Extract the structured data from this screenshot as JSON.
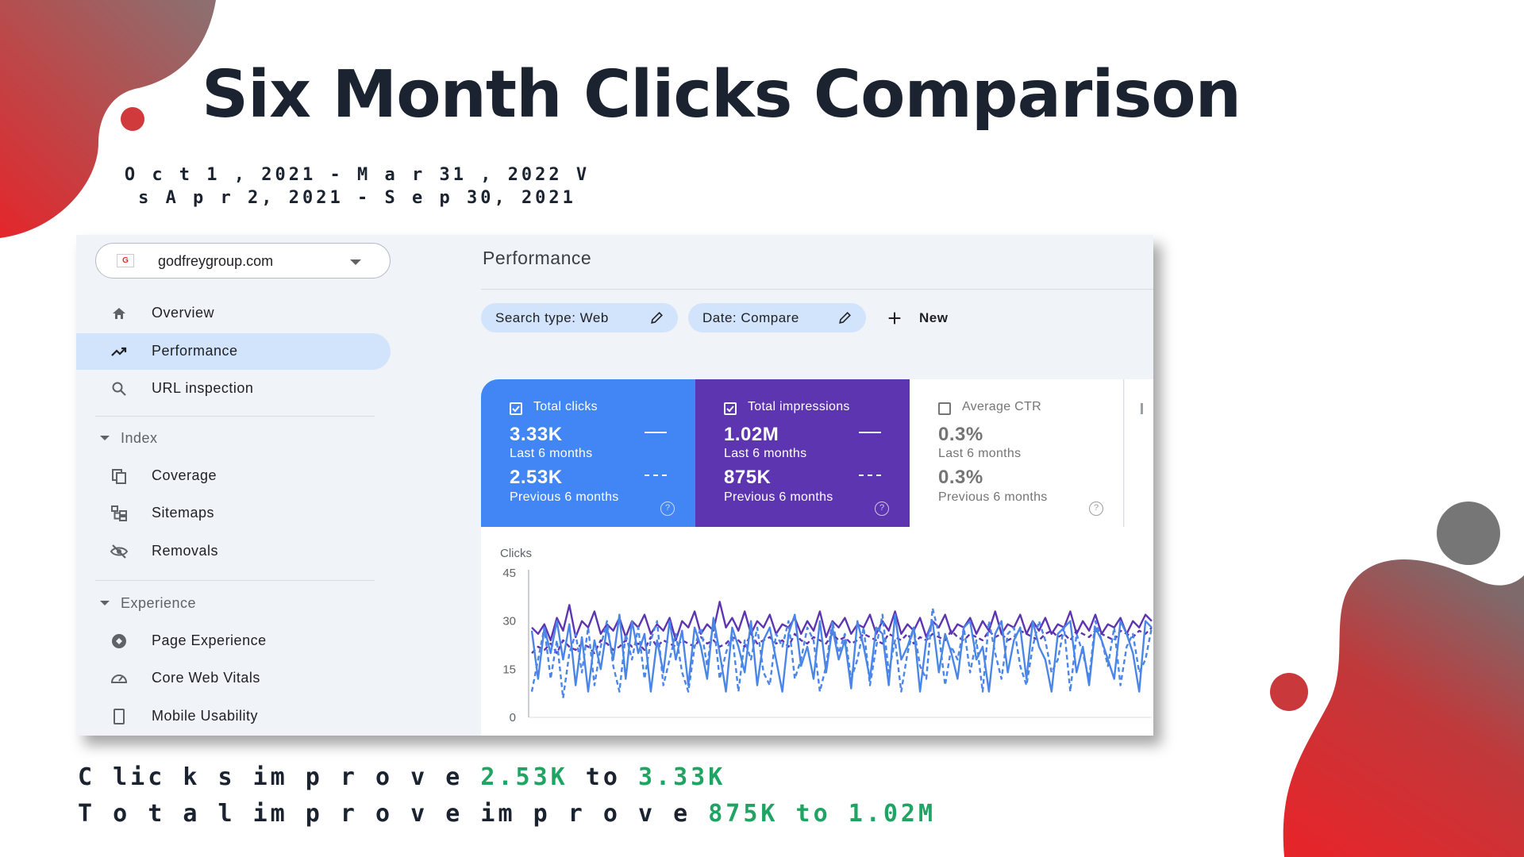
{
  "slide": {
    "title": "Six Month Clicks Comparison",
    "date_range": "O c t 1 , 2021  - M a r 31 , 2022  V s    A p r 2, 2021  - S e p 30, 2021"
  },
  "console": {
    "property": {
      "name": "godfreygroup.com",
      "icon": "google-favicon-icon",
      "icon_glyph": "G"
    },
    "nav": [
      {
        "label": "Overview",
        "icon": "home-icon",
        "active": false
      },
      {
        "label": "Performance",
        "icon": "trending-up-icon",
        "active": true
      },
      {
        "label": "URL inspection",
        "icon": "search-icon",
        "active": false
      }
    ],
    "index_section": {
      "label": "Index",
      "items": [
        {
          "label": "Coverage",
          "icon": "coverage-icon"
        },
        {
          "label": "Sitemaps",
          "icon": "sitemap-icon"
        },
        {
          "label": "Removals",
          "icon": "eye-off-icon"
        }
      ]
    },
    "experience_section": {
      "label": "Experience",
      "items": [
        {
          "label": "Page Experience",
          "icon": "page-experience-icon"
        },
        {
          "label": "Core Web Vitals",
          "icon": "gauge-icon"
        },
        {
          "label": "Mobile Usability",
          "icon": "phone-icon"
        }
      ]
    },
    "page_title": "Performance",
    "filters": [
      {
        "label": "Search type: Web"
      },
      {
        "label": "Date: Compare"
      }
    ],
    "new_label": "New",
    "metrics": [
      {
        "label": "Total clicks",
        "checked": true,
        "current": "3.33K",
        "current_period": "Last 6 months",
        "previous": "2.53K",
        "previous_period": "Previous 6 months"
      },
      {
        "label": "Total impressions",
        "checked": true,
        "current": "1.02M",
        "current_period": "Last 6 months",
        "previous": "875K",
        "previous_period": "Previous 6 months"
      },
      {
        "label": "Average CTR",
        "checked": false,
        "current": "0.3%",
        "current_period": "Last 6 months",
        "previous": "0.3%",
        "previous_period": "Previous 6 months"
      }
    ]
  },
  "chart_data": {
    "type": "line",
    "ylabel": "Clicks",
    "yticks": [
      "45",
      "30",
      "15",
      "0"
    ],
    "ylim": [
      0,
      45
    ],
    "grid": false,
    "colors": {
      "clicks": "#4a86e8",
      "impressions": "#5e35b1"
    },
    "series": [
      {
        "metric": "clicks",
        "period": "current",
        "style": "solid",
        "values": [
          27,
          12,
          28,
          20,
          30,
          18,
          29,
          10,
          25,
          8,
          24,
          15,
          28,
          18,
          32,
          12,
          30,
          20,
          26,
          8,
          24,
          14,
          30,
          18,
          27,
          10,
          28,
          22,
          12,
          31,
          20,
          8,
          28,
          22,
          14,
          30,
          10,
          24,
          28,
          18,
          8,
          26,
          32,
          16,
          22,
          12,
          30,
          14,
          28,
          18,
          24,
          9,
          30,
          22,
          12,
          28,
          26,
          10,
          32,
          18,
          22,
          28,
          8,
          24,
          30,
          14,
          26,
          20,
          12,
          28,
          30,
          18,
          22,
          8,
          26,
          30,
          14,
          24,
          28,
          12,
          30,
          22,
          18,
          8,
          26,
          28,
          30,
          14,
          22,
          10,
          28,
          24,
          18,
          12,
          30,
          26,
          20,
          8,
          30,
          28
        ]
      },
      {
        "metric": "clicks",
        "period": "previous",
        "style": "dashed",
        "values": [
          8,
          18,
          28,
          12,
          24,
          6,
          20,
          26,
          14,
          28,
          10,
          22,
          30,
          16,
          8,
          26,
          18,
          28,
          12,
          24,
          30,
          10,
          18,
          26,
          14,
          8,
          22,
          28,
          16,
          30,
          12,
          20,
          26,
          8,
          24,
          18,
          28,
          14,
          10,
          26,
          22,
          30,
          12,
          18,
          28,
          24,
          8,
          16,
          30,
          20,
          26,
          12,
          18,
          28,
          10,
          22,
          32,
          14,
          24,
          8,
          20,
          28,
          16,
          12,
          34,
          26,
          10,
          22,
          18,
          28,
          14,
          24,
          8,
          30,
          20,
          12,
          26,
          28,
          16,
          10,
          22,
          30,
          24,
          14,
          18,
          28,
          8,
          26,
          20,
          12,
          30,
          24,
          16,
          28,
          10,
          22,
          26,
          14,
          18,
          28
        ]
      },
      {
        "metric": "impressions",
        "period": "current",
        "style": "solid",
        "values": [
          28,
          26,
          29,
          24,
          31,
          27,
          35,
          25,
          30,
          28,
          33,
          26,
          29,
          27,
          31,
          25,
          30,
          28,
          32,
          26,
          29,
          27,
          31,
          24,
          30,
          28,
          33,
          26,
          29,
          27,
          36,
          28,
          31,
          27,
          33,
          26,
          30,
          28,
          32,
          26,
          29,
          28,
          31,
          26,
          30,
          27,
          33,
          25,
          30,
          28,
          31,
          26,
          29,
          28,
          32,
          26,
          30,
          27,
          33,
          26,
          29,
          27,
          31,
          25,
          30,
          28,
          32,
          26,
          29,
          28,
          31,
          26,
          30,
          27,
          33,
          26,
          29,
          28,
          32,
          26,
          30,
          27,
          31,
          26,
          29,
          28,
          33,
          26,
          30,
          27,
          32,
          26,
          29,
          28,
          31,
          26,
          30,
          28,
          32,
          30
        ]
      },
      {
        "metric": "impressions",
        "period": "previous",
        "style": "dashed",
        "values": [
          20,
          22,
          21,
          23,
          20,
          24,
          22,
          21,
          23,
          22,
          20,
          24,
          23,
          21,
          22,
          24,
          22,
          23,
          21,
          25,
          22,
          24,
          23,
          22,
          24,
          23,
          22,
          25,
          23,
          24,
          22,
          23,
          25,
          24,
          22,
          26,
          23,
          24,
          25,
          23,
          24,
          22,
          26,
          24,
          23,
          25,
          24,
          23,
          26,
          24,
          25,
          23,
          24,
          26,
          25,
          24,
          23,
          26,
          25,
          24,
          26,
          23,
          25,
          24,
          26,
          25,
          24,
          27,
          25,
          24,
          26,
          25,
          24,
          27,
          25,
          26,
          24,
          25,
          27,
          26,
          25,
          24,
          26,
          27,
          25,
          26,
          24,
          27,
          26,
          25,
          27,
          26,
          25,
          24,
          27,
          26,
          25,
          27,
          26,
          28
        ]
      }
    ]
  },
  "summary": {
    "line1_prefix": "C lic k s  im p r o v e",
    "line1_from": "2.53K",
    "line1_mid": "to",
    "line1_to": "3.33K",
    "line2_prefix": "T o t a l im p r o v e  im p r o v e",
    "line2_from": "875K",
    "line2_mid": "to",
    "line2_to": "1.02M"
  },
  "theme": {
    "accent_red": "#e4262b",
    "accent_gray": "#7b6a6c",
    "sidebar_bg": "#f0f4f9",
    "active_bg": "#d2e3fc"
  }
}
